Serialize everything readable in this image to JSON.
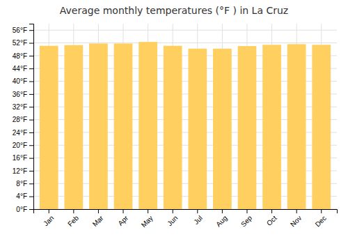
{
  "chart_data": {
    "type": "bar",
    "title": "Average monthly temperatures (°F ) in La Cruz",
    "categories": [
      "Jan",
      "Feb",
      "Mar",
      "Apr",
      "May",
      "Jun",
      "Jul",
      "Aug",
      "Sep",
      "Oct",
      "Nov",
      "Dec"
    ],
    "values": [
      51.1,
      51.3,
      51.8,
      51.8,
      52.3,
      51.1,
      50.2,
      50.2,
      51.0,
      51.4,
      51.6,
      51.4
    ],
    "color": "#FFD060",
    "ylim": [
      0,
      58
    ],
    "yticks": [
      {
        "value": 0,
        "label": "0°F"
      },
      {
        "value": 4,
        "label": "4°F"
      },
      {
        "value": 8,
        "label": "8°F"
      },
      {
        "value": 12,
        "label": "12°F"
      },
      {
        "value": 16,
        "label": "16°F"
      },
      {
        "value": 20,
        "label": "20°F"
      },
      {
        "value": 24,
        "label": "24°F"
      },
      {
        "value": 28,
        "label": "28°F"
      },
      {
        "value": 32,
        "label": "32°F"
      },
      {
        "value": 36,
        "label": "36°F"
      },
      {
        "value": 40,
        "label": "40°F"
      },
      {
        "value": 44,
        "label": "44°F"
      },
      {
        "value": 48,
        "label": "48°F"
      },
      {
        "value": 52,
        "label": "52°F"
      },
      {
        "value": 56,
        "label": "56°F"
      }
    ],
    "grid": true
  }
}
